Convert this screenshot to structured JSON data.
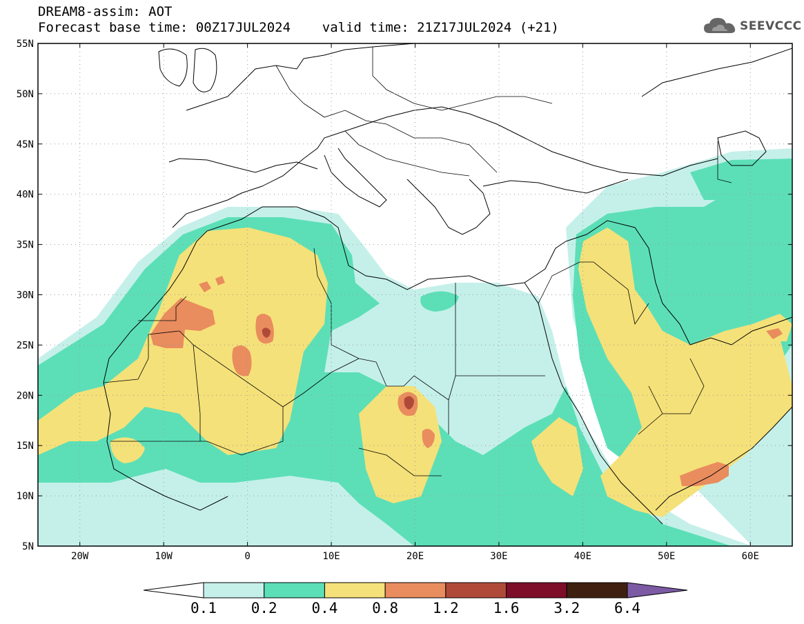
{
  "header": {
    "title_line1": "DREAM8-assim: AOT",
    "title_line2": "Forecast base time: 00Z17JUL2024    valid time: 21Z17JUL2024 (+21)"
  },
  "logo": {
    "text": "SEEVCCC",
    "icon": "cloud-icon"
  },
  "map": {
    "lat_labels": [
      "55N",
      "50N",
      "45N",
      "40N",
      "35N",
      "30N",
      "25N",
      "20N",
      "15N",
      "10N",
      "5N"
    ],
    "lon_labels": [
      "20W",
      "10W",
      "0",
      "10E",
      "20E",
      "30E",
      "40E",
      "50E",
      "60E"
    ],
    "grid": "dotted"
  },
  "colorbar": {
    "levels": [
      "0.1",
      "0.2",
      "0.4",
      "0.8",
      "1.2",
      "1.6",
      "3.2",
      "6.4"
    ],
    "colors": [
      "#ffffff",
      "#c5f0ea",
      "#5cdfb7",
      "#f5e179",
      "#e98c5e",
      "#b04a38",
      "#7e0d2a",
      "#3f2010",
      "#7c5aa4"
    ]
  }
}
